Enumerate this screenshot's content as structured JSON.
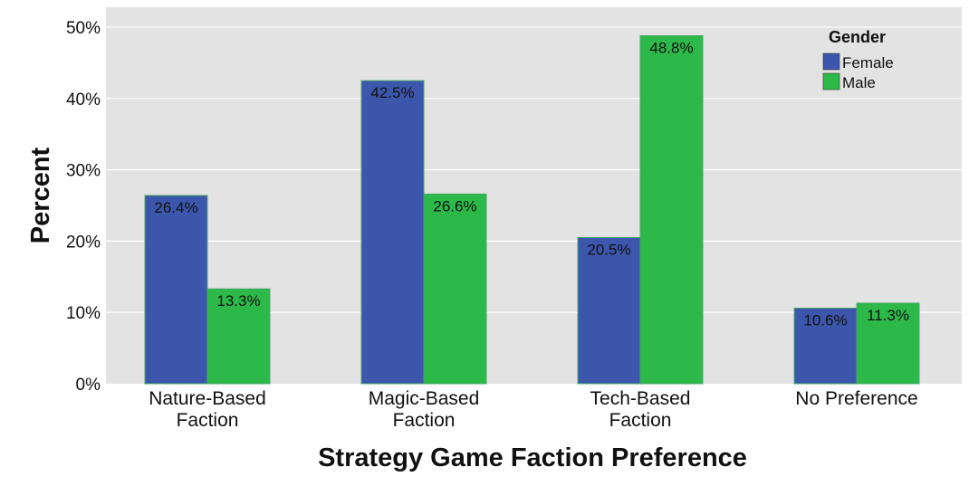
{
  "chart_data": {
    "type": "bar",
    "xlabel": "Strategy Game Faction Preference",
    "ylabel": "Percent",
    "ylim": [
      0,
      50
    ],
    "yticks": [
      "0%",
      "10%",
      "20%",
      "30%",
      "40%",
      "50%"
    ],
    "categories": [
      [
        "Nature-Based",
        "Faction"
      ],
      [
        "Magic-Based",
        "Faction"
      ],
      [
        "Tech-Based",
        "Faction"
      ],
      [
        "No Preference"
      ]
    ],
    "series": [
      {
        "name": "Female",
        "color": "#3c56ac",
        "values": [
          26.4,
          42.5,
          20.5,
          10.6
        ],
        "labels": [
          "26.4%",
          "42.5%",
          "20.5%",
          "10.6%"
        ]
      },
      {
        "name": "Male",
        "color": "#2db84a",
        "values": [
          13.3,
          26.6,
          48.8,
          11.3
        ],
        "labels": [
          "13.3%",
          "26.6%",
          "48.8%",
          "11.3%"
        ]
      }
    ],
    "legend": {
      "title": "Gender",
      "position": "top-right"
    },
    "grid": true,
    "background": "#e3e3e3"
  }
}
